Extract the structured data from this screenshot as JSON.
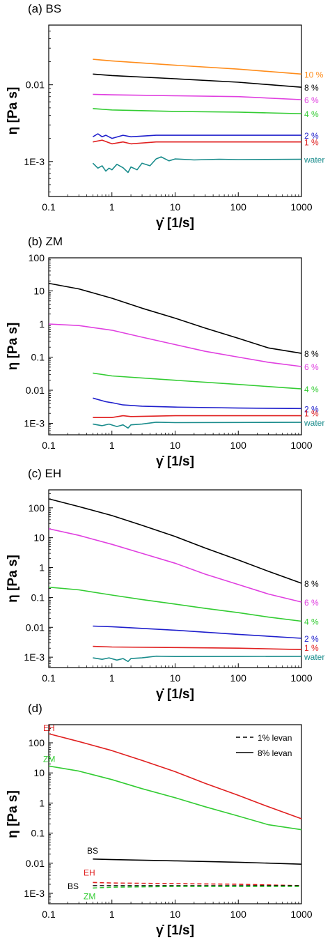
{
  "chart_data": [
    {
      "type": "line",
      "panel_label": "(a) BS",
      "xlabel": "γ̇ [1/s]",
      "ylabel": "η [Pa s]",
      "xscale": "log",
      "yscale": "log",
      "xlim": [
        0.1,
        1000
      ],
      "ylim": [
        0.00035,
        0.06
      ],
      "xticks": [
        "0.1",
        "1",
        "10",
        "100",
        "1000"
      ],
      "yticks": [
        {
          "value": 0.01,
          "label": "0.01"
        },
        {
          "value": 0.001,
          "label": "1E-3"
        }
      ],
      "series": [
        {
          "name": "10 %",
          "color": "#ff8c1a",
          "x": [
            0.5,
            1,
            10,
            100,
            1000
          ],
          "y": [
            0.0215,
            0.0205,
            0.018,
            0.016,
            0.0138
          ]
        },
        {
          "name": "8 %",
          "color": "#000000",
          "x": [
            0.5,
            1,
            10,
            100,
            1000
          ],
          "y": [
            0.0138,
            0.0132,
            0.012,
            0.0108,
            0.0093
          ]
        },
        {
          "name": "6 %",
          "color": "#e040e0",
          "x": [
            0.5,
            1,
            10,
            100,
            1000
          ],
          "y": [
            0.0075,
            0.0074,
            0.0072,
            0.007,
            0.0064
          ]
        },
        {
          "name": "4 %",
          "color": "#33cc33",
          "x": [
            0.5,
            1,
            10,
            100,
            1000
          ],
          "y": [
            0.0049,
            0.0047,
            0.0045,
            0.0044,
            0.0042
          ]
        },
        {
          "name": "2 %",
          "color": "#1f1fcc",
          "x": [
            0.5,
            0.6,
            0.7,
            0.8,
            1,
            1.5,
            2,
            5,
            10,
            100,
            1000
          ],
          "y": [
            0.0021,
            0.0023,
            0.0021,
            0.0022,
            0.002,
            0.0022,
            0.0021,
            0.0022,
            0.0022,
            0.0022,
            0.0022
          ]
        },
        {
          "name": "1 %",
          "color": "#e02020",
          "x": [
            0.5,
            0.7,
            1,
            1.5,
            2,
            5,
            10,
            100,
            1000
          ],
          "y": [
            0.0018,
            0.0019,
            0.0017,
            0.0018,
            0.0017,
            0.0018,
            0.0018,
            0.0018,
            0.0018
          ]
        },
        {
          "name": "water",
          "color": "#1a8c8c",
          "x": [
            0.5,
            0.6,
            0.7,
            0.8,
            0.9,
            1,
            1.2,
            1.5,
            1.8,
            2,
            2.5,
            3,
            4,
            5,
            6,
            8,
            10,
            20,
            50,
            100,
            1000
          ],
          "y": [
            0.00095,
            0.00082,
            0.00088,
            0.00075,
            0.00082,
            0.00078,
            0.00092,
            0.00083,
            0.00072,
            0.00085,
            0.00078,
            0.00095,
            0.00088,
            0.00108,
            0.00115,
            0.00102,
            0.00108,
            0.00105,
            0.00107,
            0.00106,
            0.00107
          ]
        }
      ]
    },
    {
      "type": "line",
      "panel_label": "(b) ZM",
      "xlabel": "γ̇ [1/s]",
      "ylabel": "η [Pa s]",
      "xscale": "log",
      "yscale": "log",
      "xlim": [
        0.1,
        1000
      ],
      "ylim": [
        0.00045,
        100
      ],
      "xticks": [
        "0.1",
        "1",
        "10",
        "100",
        "1000"
      ],
      "yticks": [
        {
          "value": 100,
          "label": "100"
        },
        {
          "value": 10,
          "label": "10"
        },
        {
          "value": 1,
          "label": "1"
        },
        {
          "value": 0.1,
          "label": "0.1"
        },
        {
          "value": 0.01,
          "label": "0.01"
        },
        {
          "value": 0.001,
          "label": "1E-3"
        }
      ],
      "series": [
        {
          "name": "8 %",
          "color": "#000000",
          "x": [
            0.1,
            0.3,
            1,
            3,
            10,
            30,
            100,
            300,
            1000
          ],
          "y": [
            17,
            11.5,
            6,
            3,
            1.5,
            0.75,
            0.37,
            0.19,
            0.13
          ]
        },
        {
          "name": "6 %",
          "color": "#e040e0",
          "x": [
            0.1,
            0.3,
            1,
            3,
            10,
            30,
            100,
            300,
            1000
          ],
          "y": [
            1.0,
            0.9,
            0.65,
            0.4,
            0.24,
            0.15,
            0.1,
            0.07,
            0.052
          ]
        },
        {
          "name": "4 %",
          "color": "#33cc33",
          "x": [
            0.5,
            1,
            10,
            100,
            1000
          ],
          "y": [
            0.033,
            0.027,
            0.02,
            0.015,
            0.011
          ]
        },
        {
          "name": "2 %",
          "color": "#1f1fcc",
          "x": [
            0.5,
            0.8,
            1,
            1.5,
            3,
            10,
            100,
            1000
          ],
          "y": [
            0.0058,
            0.0045,
            0.0042,
            0.0036,
            0.0033,
            0.0031,
            0.0029,
            0.0028
          ]
        },
        {
          "name": "1 %",
          "color": "#e02020",
          "x": [
            0.5,
            1,
            1.5,
            2,
            10,
            1000
          ],
          "y": [
            0.0015,
            0.0015,
            0.0017,
            0.0016,
            0.0017,
            0.0017
          ]
        },
        {
          "name": "water",
          "color": "#1a8c8c",
          "x": [
            0.5,
            0.7,
            0.9,
            1.2,
            1.5,
            1.8,
            2,
            3,
            5,
            10,
            100,
            1000
          ],
          "y": [
            0.00095,
            0.00085,
            0.00095,
            0.0008,
            0.0009,
            0.00072,
            0.0009,
            0.00095,
            0.00108,
            0.00105,
            0.00106,
            0.00107
          ]
        }
      ]
    },
    {
      "type": "line",
      "panel_label": "(c) EH",
      "xlabel": "γ̇ [1/s]",
      "ylabel": "η [Pa s]",
      "xscale": "log",
      "yscale": "log",
      "xlim": [
        0.1,
        1000
      ],
      "ylim": [
        0.00045,
        400
      ],
      "xticks": [
        "0.1",
        "1",
        "10",
        "100",
        "1000"
      ],
      "yticks": [
        {
          "value": 100,
          "label": "100"
        },
        {
          "value": 10,
          "label": "10"
        },
        {
          "value": 1,
          "label": "1"
        },
        {
          "value": 0.1,
          "label": "0.1"
        },
        {
          "value": 0.01,
          "label": "0.01"
        },
        {
          "value": 0.001,
          "label": "1E-3"
        }
      ],
      "series": [
        {
          "name": "8 %",
          "color": "#000000",
          "x": [
            0.1,
            0.3,
            1,
            3,
            10,
            30,
            100,
            300,
            1000
          ],
          "y": [
            200,
            110,
            55,
            26,
            11,
            4.5,
            1.8,
            0.75,
            0.3
          ]
        },
        {
          "name": "6 %",
          "color": "#e040e0",
          "x": [
            0.1,
            0.3,
            1,
            3,
            10,
            30,
            100,
            300,
            1000
          ],
          "y": [
            20,
            12,
            6,
            3,
            1.4,
            0.6,
            0.27,
            0.13,
            0.07
          ]
        },
        {
          "name": "4 %",
          "color": "#33cc33",
          "x": [
            0.1,
            0.3,
            1,
            3,
            10,
            30,
            100,
            300,
            1000
          ],
          "y": [
            0.22,
            0.18,
            0.12,
            0.085,
            0.06,
            0.043,
            0.031,
            0.022,
            0.016
          ]
        },
        {
          "name": "2 %",
          "color": "#1f1fcc",
          "x": [
            0.5,
            1,
            10,
            100,
            1000
          ],
          "y": [
            0.011,
            0.0105,
            0.008,
            0.0058,
            0.0043
          ]
        },
        {
          "name": "1 %",
          "color": "#e02020",
          "x": [
            0.5,
            1,
            10,
            100,
            1000
          ],
          "y": [
            0.0023,
            0.0022,
            0.0021,
            0.002,
            0.0018
          ]
        },
        {
          "name": "water",
          "color": "#1a8c8c",
          "x": [
            0.5,
            0.7,
            0.9,
            1.2,
            1.5,
            1.8,
            2,
            3,
            5,
            10,
            100,
            1000
          ],
          "y": [
            0.00095,
            0.00085,
            0.00095,
            0.0008,
            0.0009,
            0.00072,
            0.0009,
            0.00095,
            0.00108,
            0.00105,
            0.00106,
            0.00107
          ]
        }
      ]
    },
    {
      "type": "line",
      "panel_label": "(d)",
      "xlabel": "γ̇ [1/s]",
      "ylabel": "η [Pa s]",
      "xscale": "log",
      "yscale": "log",
      "xlim": [
        0.1,
        1000
      ],
      "ylim": [
        0.00045,
        400
      ],
      "xticks": [
        "0.1",
        "1",
        "10",
        "100",
        "1000"
      ],
      "yticks": [
        {
          "value": 100,
          "label": "100"
        },
        {
          "value": 10,
          "label": "10"
        },
        {
          "value": 1,
          "label": "1"
        },
        {
          "value": 0.1,
          "label": "0.1"
        },
        {
          "value": 0.01,
          "label": "0.01"
        },
        {
          "value": 0.001,
          "label": "1E-3"
        }
      ],
      "legend": {
        "position": "top-right",
        "entries": [
          {
            "label": "1% levan",
            "dash": "dashed"
          },
          {
            "label": "8% levan",
            "dash": "solid"
          }
        ]
      },
      "series": [
        {
          "name": "EH",
          "color": "#e02020",
          "dash": "solid",
          "x": [
            0.1,
            0.3,
            1,
            3,
            10,
            30,
            100,
            300,
            1000
          ],
          "y": [
            200,
            110,
            55,
            26,
            11,
            4.5,
            1.8,
            0.75,
            0.3
          ]
        },
        {
          "name": "ZM",
          "color": "#33cc33",
          "dash": "solid",
          "x": [
            0.1,
            0.3,
            1,
            3,
            10,
            30,
            100,
            300,
            1000
          ],
          "y": [
            17,
            11.5,
            6,
            3,
            1.5,
            0.75,
            0.37,
            0.19,
            0.13
          ]
        },
        {
          "name": "BS",
          "color": "#000000",
          "dash": "solid",
          "x": [
            0.5,
            1,
            10,
            100,
            1000
          ],
          "y": [
            0.0138,
            0.0132,
            0.012,
            0.0108,
            0.0093
          ]
        },
        {
          "name": "EH",
          "color": "#e02020",
          "dash": "dashed",
          "x": [
            0.5,
            1,
            10,
            100,
            1000
          ],
          "y": [
            0.0023,
            0.0022,
            0.0021,
            0.002,
            0.0018
          ]
        },
        {
          "name": "BS",
          "color": "#000000",
          "dash": "dashed",
          "x": [
            0.5,
            1,
            10,
            100,
            1000
          ],
          "y": [
            0.0018,
            0.0018,
            0.0018,
            0.0018,
            0.0018
          ]
        },
        {
          "name": "ZM",
          "color": "#33cc33",
          "dash": "dashed",
          "x": [
            0.5,
            1,
            10,
            100,
            1000
          ],
          "y": [
            0.0015,
            0.0016,
            0.0017,
            0.0017,
            0.0017
          ]
        }
      ]
    }
  ]
}
